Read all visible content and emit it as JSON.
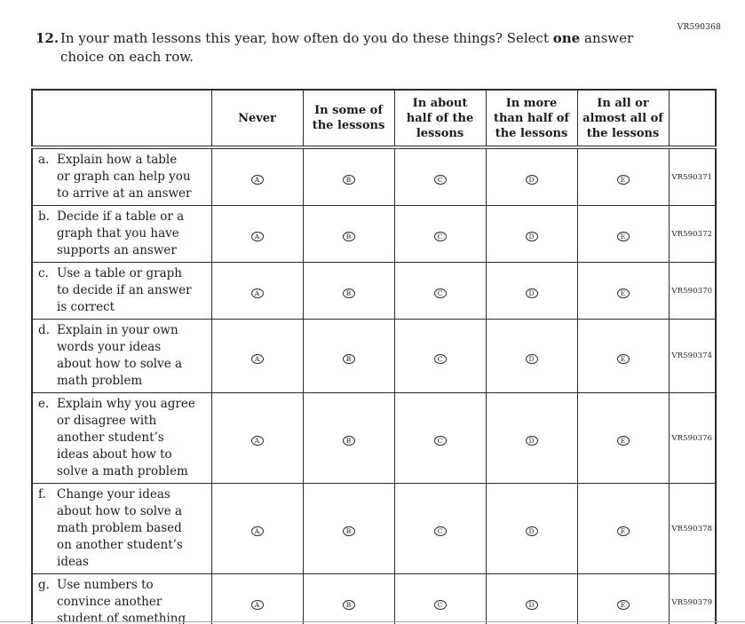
{
  "page": {
    "top_right_code": "VR590368"
  },
  "question": {
    "number": "12.",
    "text_before_bold": "In your math lessons this year, how often do you do these things? Select ",
    "bold_word": "one",
    "text_after_bold": " answer\nchoice on each row."
  },
  "table": {
    "columns": [
      {
        "label": ""
      },
      {
        "label": "Never"
      },
      {
        "label": "In some of\nthe lessons"
      },
      {
        "label": "In about\nhalf of the\nlessons"
      },
      {
        "label": "In more\nthan half of\nthe lessons"
      },
      {
        "label": "In all or\nalmost all of\nthe lessons"
      },
      {
        "label": ""
      }
    ],
    "options": [
      "A",
      "B",
      "C",
      "D",
      "E"
    ],
    "rows": [
      {
        "marker": "a.",
        "label": "Explain how a table\nor graph can help you\nto arrive at an answer",
        "code": "VR590371"
      },
      {
        "marker": "b.",
        "label": "Decide if a table or a\ngraph that you have\nsupports an answer",
        "code": "VR590372"
      },
      {
        "marker": "c.",
        "label": "Use a table or graph\nto decide if an answer\nis correct",
        "code": "VR590370"
      },
      {
        "marker": "d.",
        "label": "Explain in your own\nwords your ideas\nabout how to solve a\nmath problem",
        "code": "VR590374"
      },
      {
        "marker": "e.",
        "label": "Explain why you agree\nor disagree with\nanother student’s\nideas about how to\nsolve a math problem",
        "code": "VR590376"
      },
      {
        "marker": "f.",
        "label": "Change your ideas\nabout how to solve a\nmath problem based\non another student’s\nideas",
        "code": "VR590378"
      },
      {
        "marker": "g.",
        "label": "Use numbers to\nconvince another\nstudent of something",
        "code": "VR590379"
      }
    ]
  }
}
